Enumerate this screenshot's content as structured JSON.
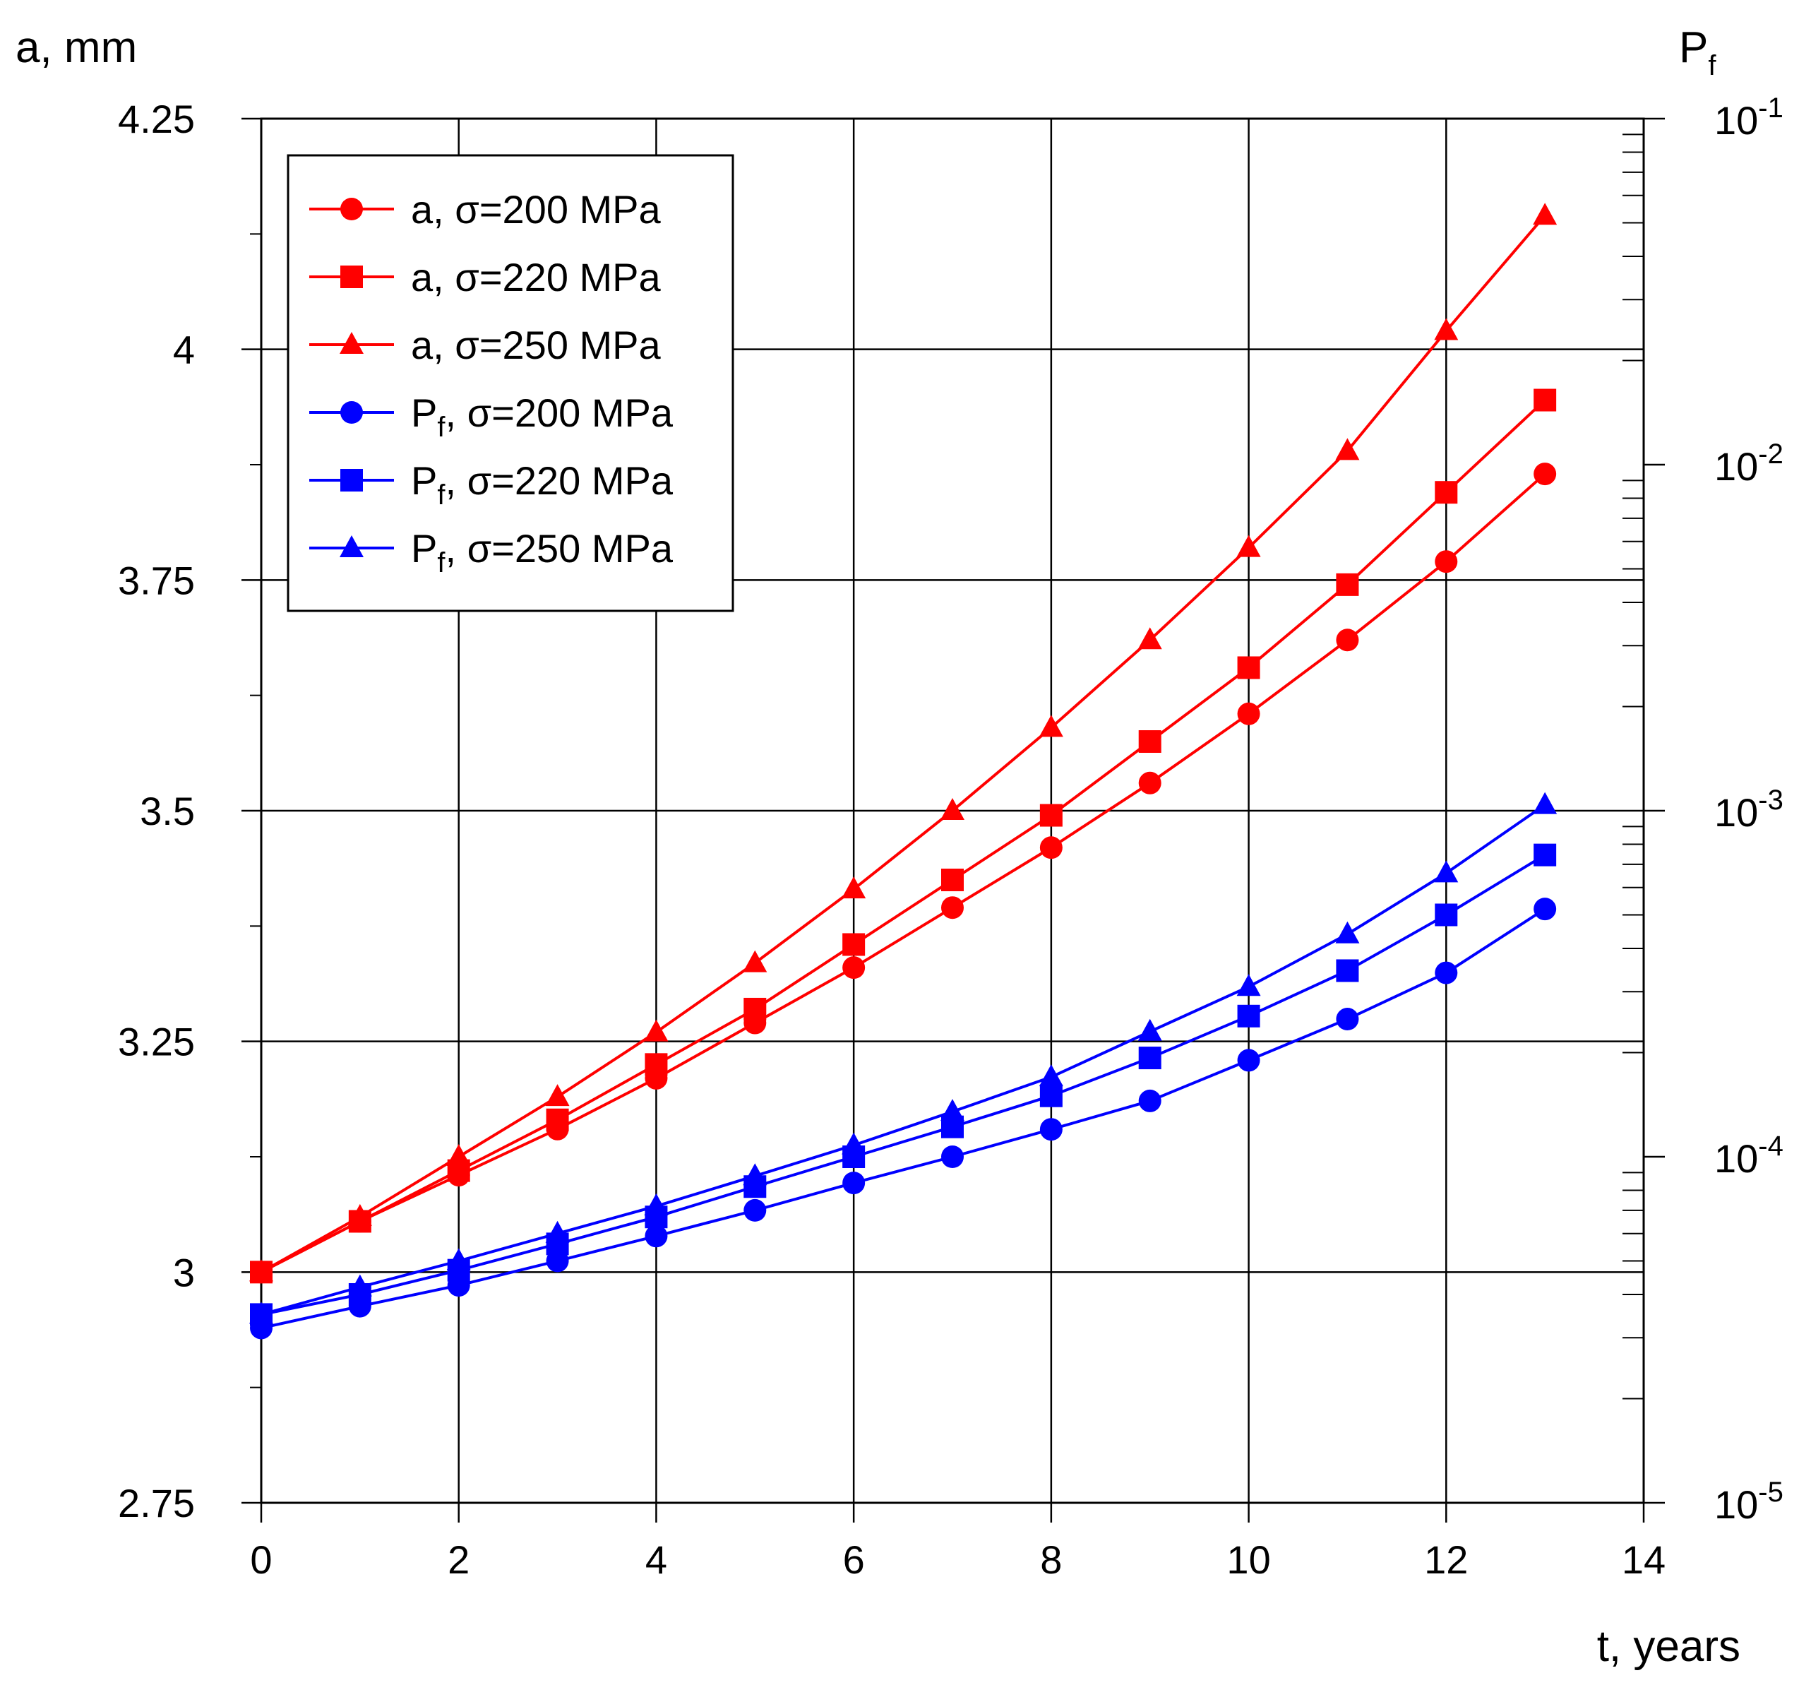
{
  "chart_data": {
    "type": "line",
    "title": "",
    "xlabel": "t, years",
    "ylabel_left": "a, mm",
    "ylabel_right": {
      "base": "P",
      "sub": "f"
    },
    "xlim": [
      0,
      14
    ],
    "ylim_left": [
      2.75,
      4.25
    ],
    "ylim_right_log10": [
      -5,
      -1
    ],
    "grid": true,
    "legend_position": "top-left",
    "x_ticks": [
      "0",
      "2",
      "4",
      "6",
      "8",
      "10",
      "12",
      "14"
    ],
    "y_left_ticks": [
      "2.75",
      "3",
      "3.25",
      "3.5",
      "3.75",
      "4",
      "4.25"
    ],
    "y_right_ticks": [
      {
        "base": "10",
        "exp": "-5"
      },
      {
        "base": "10",
        "exp": "-4"
      },
      {
        "base": "10",
        "exp": "-3"
      },
      {
        "base": "10",
        "exp": "-2"
      },
      {
        "base": "10",
        "exp": "-1"
      }
    ],
    "x": [
      0,
      1,
      2,
      3,
      4,
      5,
      6,
      7,
      8,
      9,
      10,
      11,
      12,
      13
    ],
    "series": [
      {
        "name": "a, σ=200 MPa",
        "label_main": "a,",
        "label_sigma": "σ=200 MPa",
        "axis": "left",
        "marker": "circle",
        "color": "#ff0000",
        "values": [
          3.0,
          3.055,
          3.105,
          3.155,
          3.21,
          3.27,
          3.33,
          3.395,
          3.46,
          3.53,
          3.605,
          3.685,
          3.77,
          3.865
        ]
      },
      {
        "name": "a, σ=220 MPa",
        "label_main": "a,",
        "label_sigma": "σ=220 MPa",
        "axis": "left",
        "marker": "square",
        "color": "#ff0000",
        "values": [
          3.0,
          3.055,
          3.11,
          3.165,
          3.225,
          3.285,
          3.355,
          3.425,
          3.495,
          3.575,
          3.655,
          3.745,
          3.845,
          3.945
        ]
      },
      {
        "name": "a, σ=250 MPa",
        "label_main": "a,",
        "label_sigma": "σ=250 MPa",
        "axis": "left",
        "marker": "triangle",
        "color": "#ff0000",
        "values": [
          3.0,
          3.06,
          3.125,
          3.19,
          3.26,
          3.335,
          3.415,
          3.5,
          3.59,
          3.685,
          3.785,
          3.89,
          4.02,
          4.145
        ]
      },
      {
        "name": "Pf, σ=200 MPa",
        "label_main": "P",
        "label_sub": "f",
        "label_sigma": "σ=200 MPa",
        "axis": "right",
        "marker": "circle",
        "color": "#0000ff",
        "values": [
          3.2e-05,
          3.7e-05,
          4.25e-05,
          5e-05,
          5.9e-05,
          7e-05,
          8.4e-05,
          0.0001,
          0.00012,
          0.000145,
          0.00019,
          0.00025,
          0.00034,
          0.00052
        ]
      },
      {
        "name": "Pf, σ=220 MPa",
        "label_main": "P",
        "label_sub": "f",
        "label_sigma": "σ=220 MPa",
        "axis": "right",
        "marker": "square",
        "color": "#0000ff",
        "values": [
          3.5e-05,
          4e-05,
          4.7e-05,
          5.6e-05,
          6.7e-05,
          8.2e-05,
          0.0001,
          0.000122,
          0.00015,
          0.000193,
          0.000255,
          0.000345,
          0.0005,
          0.000745
        ]
      },
      {
        "name": "Pf, σ=250 MPa",
        "label_main": "P",
        "label_sub": "f",
        "label_sigma": "σ=250 MPa",
        "axis": "right",
        "marker": "triangle",
        "color": "#0000ff",
        "values": [
          3.5e-05,
          4.2e-05,
          5e-05,
          6e-05,
          7.2e-05,
          8.8e-05,
          0.000108,
          0.000135,
          0.00017,
          0.00023,
          0.00031,
          0.00044,
          0.00066,
          0.00104
        ]
      }
    ]
  }
}
